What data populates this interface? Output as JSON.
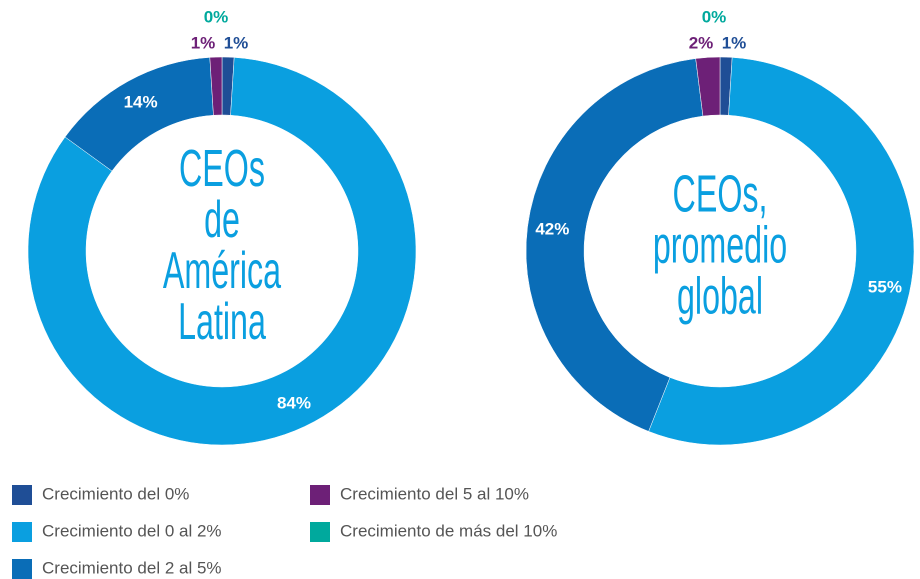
{
  "legend": {
    "categories": [
      "Crecimiento del 0%",
      "Crecimiento del 0 al 2%",
      "Crecimiento del 2 al 5%",
      "Crecimiento del 5 al 10%",
      "Crecimiento de más del 10%"
    ],
    "colors": [
      "#1f4e96",
      "#0a9fe0",
      "#0a6db7",
      "#6d2077",
      "#00a99d"
    ]
  },
  "chart_data": [
    {
      "type": "donut",
      "center_label": [
        "CEOs",
        "de",
        "América",
        "Latina"
      ],
      "values": [
        1,
        84,
        14,
        1,
        0
      ],
      "value_labels": [
        "1%",
        "84%",
        "14%",
        "1%",
        "0%"
      ]
    },
    {
      "type": "donut",
      "center_label": [
        "CEOs,",
        "promedio",
        "global"
      ],
      "values": [
        1,
        55,
        42,
        2,
        0
      ],
      "value_labels": [
        "1%",
        "55%",
        "42%",
        "2%",
        "0%"
      ]
    }
  ]
}
